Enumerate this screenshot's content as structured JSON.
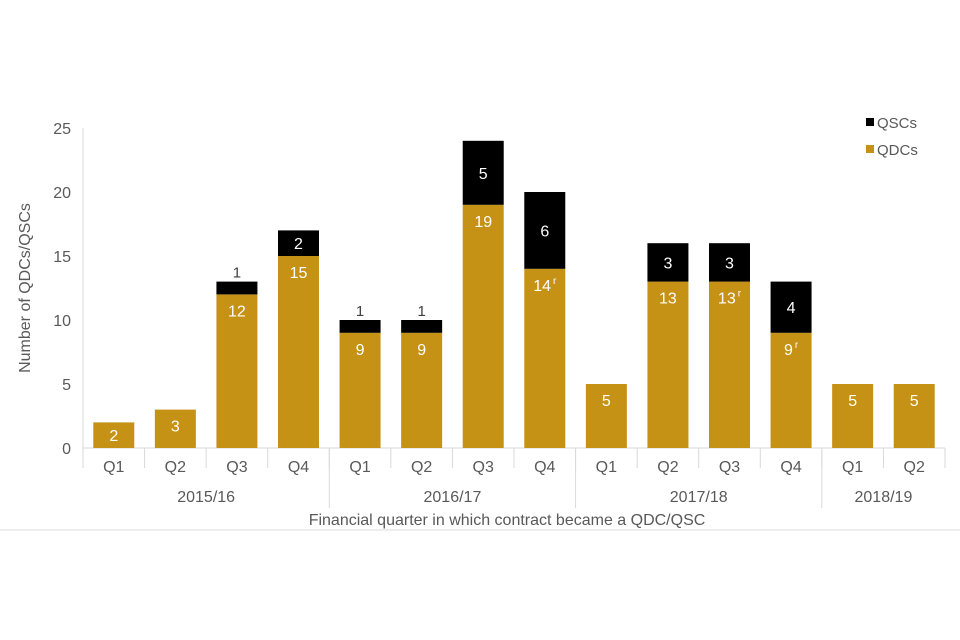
{
  "chart_data": {
    "type": "stacked-bar",
    "title": "",
    "xlabel": "Financial quarter in which contract became a QDC/QSC",
    "ylabel": "Number of QDCs/QSCs",
    "ylim": [
      0,
      25
    ],
    "yticks": [
      0,
      5,
      10,
      15,
      20,
      25
    ],
    "grid": false,
    "legend_position": "top-right",
    "categories": [
      "Q1",
      "Q2",
      "Q3",
      "Q4",
      "Q1",
      "Q2",
      "Q3",
      "Q4",
      "Q1",
      "Q2",
      "Q3",
      "Q4",
      "Q1",
      "Q2"
    ],
    "groups": [
      {
        "label": "2015/16",
        "count": 4
      },
      {
        "label": "2016/17",
        "count": 4
      },
      {
        "label": "2017/18",
        "count": 4
      },
      {
        "label": "2018/19",
        "count": 2
      }
    ],
    "series": [
      {
        "name": "QDCs",
        "color": "#C59216",
        "values": [
          2,
          3,
          12,
          15,
          9,
          9,
          19,
          14,
          5,
          13,
          13,
          9,
          5,
          5
        ],
        "revised": [
          false,
          false,
          false,
          false,
          false,
          false,
          false,
          true,
          false,
          false,
          true,
          true,
          false,
          false
        ]
      },
      {
        "name": "QSCs",
        "color": "#000000",
        "values": [
          0,
          0,
          1,
          2,
          1,
          1,
          5,
          6,
          0,
          3,
          3,
          4,
          0,
          0
        ]
      }
    ],
    "revised_marker": "r"
  }
}
